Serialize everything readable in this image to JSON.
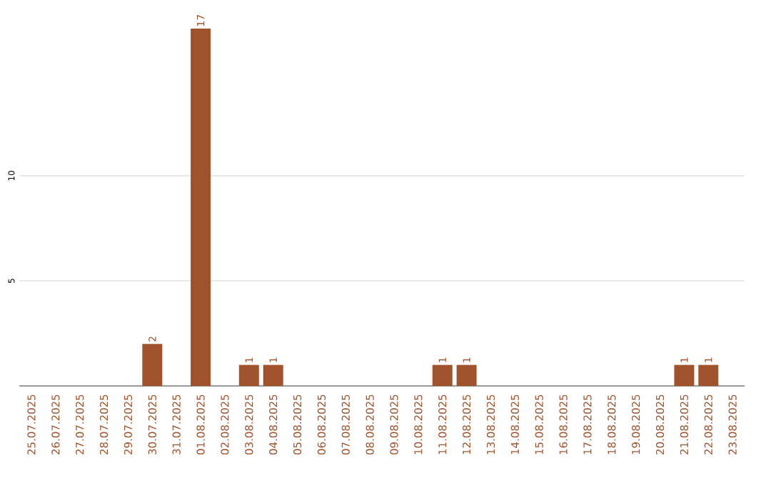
{
  "chart_data": {
    "type": "bar",
    "categories": [
      "25.07.2025",
      "26.07.2025",
      "27.07.2025",
      "28.07.2025",
      "29.07.2025",
      "30.07.2025",
      "31.07.2025",
      "01.08.2025",
      "02.08.2025",
      "03.08.2025",
      "04.08.2025",
      "05.08.2025",
      "06.08.2025",
      "07.08.2025",
      "08.08.2025",
      "09.08.2025",
      "10.08.2025",
      "11.08.2025",
      "12.08.2025",
      "13.08.2025",
      "14.08.2025",
      "15.08.2025",
      "16.08.2025",
      "17.08.2025",
      "18.08.2025",
      "19.08.2025",
      "20.08.2025",
      "21.08.2025",
      "22.08.2025",
      "23.08.2025"
    ],
    "values": [
      0,
      0,
      0,
      0,
      0,
      2,
      0,
      17,
      0,
      1,
      1,
      0,
      0,
      0,
      0,
      0,
      0,
      1,
      1,
      0,
      0,
      0,
      0,
      0,
      0,
      0,
      0,
      1,
      1,
      0
    ],
    "value_labels": [
      null,
      null,
      null,
      null,
      null,
      "2",
      null,
      "17",
      null,
      "1",
      "1",
      null,
      null,
      null,
      null,
      null,
      null,
      "1",
      "1",
      null,
      null,
      null,
      null,
      null,
      null,
      null,
      null,
      "1",
      "1",
      null
    ],
    "color": "#a0522d",
    "ylim": [
      0,
      17
    ],
    "yticks": [
      5,
      10
    ],
    "grid": "y"
  }
}
